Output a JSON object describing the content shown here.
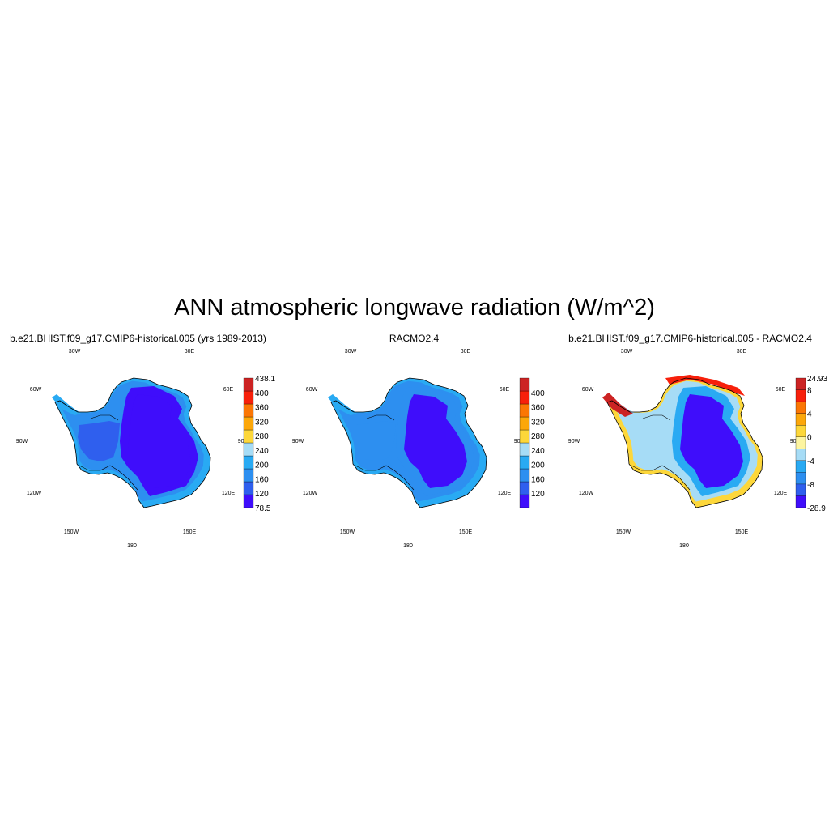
{
  "title": "ANN atmospheric longwave radiation (W/m^2)",
  "panels": [
    {
      "title": "b.e21.BHIST.f09_g17.CMIP6-historical.005 (yrs 1989-2013)",
      "colorbar": {
        "colors": [
          "#3f0dfb",
          "#2f5fee",
          "#2d8ff0",
          "#29aaf3",
          "#a6dcf6",
          "#fdd73a",
          "#fca70a",
          "#fb7604",
          "#f7200b",
          "#cc2323"
        ],
        "labels": [
          "78.5",
          "120",
          "160",
          "200",
          "240",
          "280",
          "320",
          "360",
          "400",
          "438.1"
        ]
      }
    },
    {
      "title": "RACMO2.4",
      "colorbar": {
        "colors": [
          "#3f0dfb",
          "#2f5fee",
          "#2d8ff0",
          "#29aaf3",
          "#a6dcf6",
          "#fdd73a",
          "#fca70a",
          "#fb7604",
          "#f7200b",
          "#cc2323"
        ],
        "labels": [
          "",
          "120",
          "160",
          "200",
          "240",
          "280",
          "320",
          "360",
          "400",
          ""
        ]
      }
    },
    {
      "title": "b.e21.BHIST.f09_g17.CMIP6-historical.005 - RACMO2.4",
      "colorbar": {
        "colors": [
          "#3f0dfb",
          "#2f5fee",
          "#2d8ff0",
          "#29aaf3",
          "#a6dcf6",
          "#fdf5a0",
          "#fdd73a",
          "#fca70a",
          "#fb7604",
          "#f7200b",
          "#cc2323"
        ],
        "labels": [
          "-28.9",
          "",
          "-8",
          "",
          "-4",
          "",
          "0",
          "",
          "4",
          "",
          "8",
          "24.93"
        ]
      }
    }
  ],
  "lon_labels": [
    "30W",
    "30E",
    "60W",
    "60E",
    "90W",
    "90E",
    "120W",
    "120E",
    "150W",
    "150E",
    "180"
  ]
}
